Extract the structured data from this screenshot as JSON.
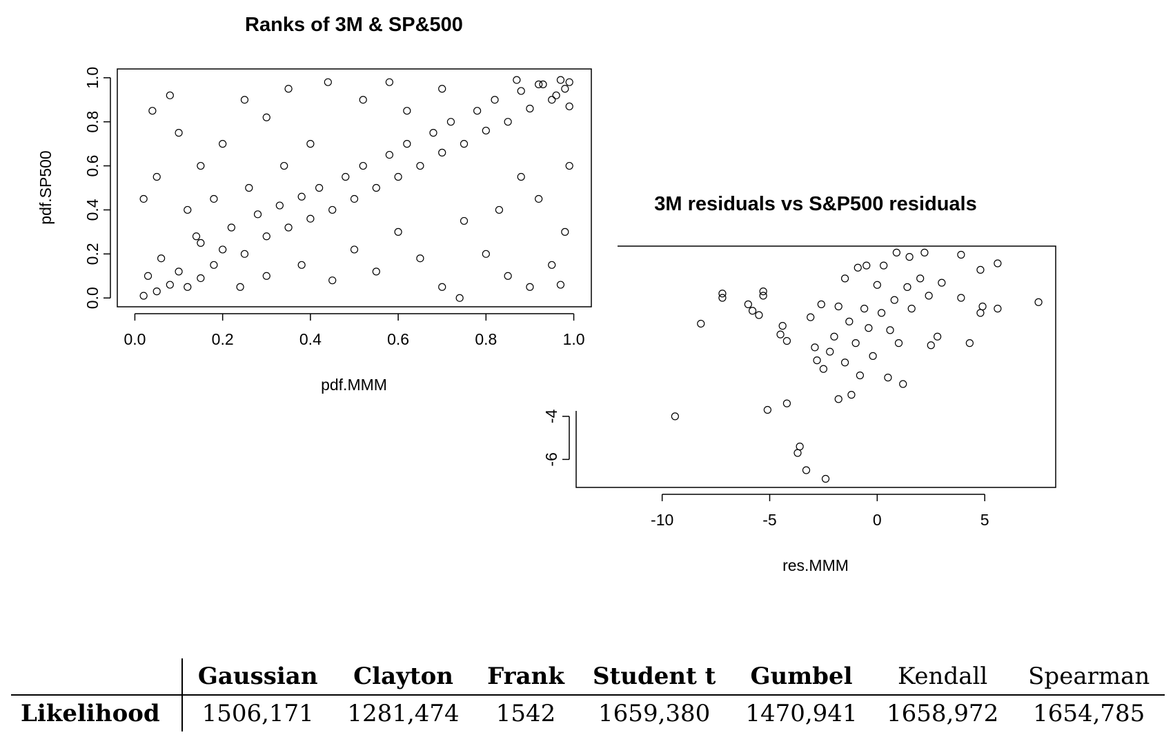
{
  "chart_data": [
    {
      "type": "scatter",
      "title": "Ranks of 3M & SP&500",
      "xlabel": "pdf.MMM",
      "ylabel": "pdf.SP500",
      "xlim": [
        -0.04,
        1.04
      ],
      "ylim": [
        -0.04,
        1.04
      ],
      "xticks": [
        "0.0",
        "0.2",
        "0.4",
        "0.6",
        "0.8",
        "1.0"
      ],
      "yticks": [
        "0.0",
        "0.2",
        "0.4",
        "0.6",
        "0.8",
        "1.0"
      ],
      "grid": false,
      "points": [
        [
          0.02,
          0.01
        ],
        [
          0.05,
          0.03
        ],
        [
          0.08,
          0.06
        ],
        [
          0.03,
          0.1
        ],
        [
          0.12,
          0.05
        ],
        [
          0.1,
          0.12
        ],
        [
          0.15,
          0.09
        ],
        [
          0.06,
          0.18
        ],
        [
          0.18,
          0.15
        ],
        [
          0.2,
          0.22
        ],
        [
          0.14,
          0.28
        ],
        [
          0.25,
          0.2
        ],
        [
          0.22,
          0.32
        ],
        [
          0.3,
          0.28
        ],
        [
          0.28,
          0.38
        ],
        [
          0.35,
          0.32
        ],
        [
          0.33,
          0.42
        ],
        [
          0.4,
          0.36
        ],
        [
          0.38,
          0.46
        ],
        [
          0.45,
          0.4
        ],
        [
          0.42,
          0.5
        ],
        [
          0.5,
          0.45
        ],
        [
          0.48,
          0.55
        ],
        [
          0.55,
          0.5
        ],
        [
          0.52,
          0.6
        ],
        [
          0.6,
          0.55
        ],
        [
          0.58,
          0.65
        ],
        [
          0.65,
          0.6
        ],
        [
          0.62,
          0.7
        ],
        [
          0.7,
          0.66
        ],
        [
          0.68,
          0.75
        ],
        [
          0.75,
          0.7
        ],
        [
          0.72,
          0.8
        ],
        [
          0.8,
          0.76
        ],
        [
          0.78,
          0.85
        ],
        [
          0.85,
          0.8
        ],
        [
          0.82,
          0.9
        ],
        [
          0.9,
          0.86
        ],
        [
          0.88,
          0.94
        ],
        [
          0.95,
          0.9
        ],
        [
          0.93,
          0.97
        ],
        [
          0.98,
          0.95
        ],
        [
          0.97,
          0.99
        ],
        [
          0.99,
          0.98
        ],
        [
          0.96,
          0.92
        ],
        [
          0.92,
          0.97
        ],
        [
          0.87,
          0.99
        ],
        [
          0.99,
          0.87
        ],
        [
          0.04,
          0.85
        ],
        [
          0.08,
          0.92
        ],
        [
          0.1,
          0.75
        ],
        [
          0.15,
          0.6
        ],
        [
          0.05,
          0.55
        ],
        [
          0.02,
          0.45
        ],
        [
          0.12,
          0.4
        ],
        [
          0.2,
          0.7
        ],
        [
          0.25,
          0.9
        ],
        [
          0.3,
          0.82
        ],
        [
          0.35,
          0.95
        ],
        [
          0.44,
          0.98
        ],
        [
          0.52,
          0.9
        ],
        [
          0.58,
          0.98
        ],
        [
          0.62,
          0.85
        ],
        [
          0.7,
          0.95
        ],
        [
          0.9,
          0.05
        ],
        [
          0.95,
          0.15
        ],
        [
          0.85,
          0.1
        ],
        [
          0.98,
          0.3
        ],
        [
          0.92,
          0.45
        ],
        [
          0.8,
          0.2
        ],
        [
          0.75,
          0.35
        ],
        [
          0.7,
          0.05
        ],
        [
          0.65,
          0.18
        ],
        [
          0.6,
          0.3
        ],
        [
          0.55,
          0.12
        ],
        [
          0.5,
          0.22
        ],
        [
          0.45,
          0.08
        ],
        [
          0.74,
          0.0
        ],
        [
          0.97,
          0.06
        ],
        [
          0.99,
          0.6
        ],
        [
          0.88,
          0.55
        ],
        [
          0.83,
          0.4
        ],
        [
          0.4,
          0.7
        ],
        [
          0.34,
          0.6
        ],
        [
          0.26,
          0.5
        ],
        [
          0.18,
          0.45
        ],
        [
          0.3,
          0.1
        ],
        [
          0.38,
          0.15
        ],
        [
          0.24,
          0.05
        ],
        [
          0.15,
          0.25
        ]
      ]
    },
    {
      "type": "scatter",
      "title": "3M residuals vs S&P500 residuals",
      "xlabel": "res.MMM",
      "ylabel": "",
      "xlim": [
        -14,
        8.3
      ],
      "ylim": [
        -7.3,
        3.9
      ],
      "xticks": [
        "-10",
        "-5",
        "0",
        "5"
      ],
      "yticks": [
        "-6",
        "-4"
      ],
      "grid": false,
      "points": [
        [
          -9.4,
          -4.0
        ],
        [
          -8.2,
          0.3
        ],
        [
          -7.2,
          1.7
        ],
        [
          -7.2,
          1.5
        ],
        [
          -5.3,
          1.8
        ],
        [
          -5.3,
          1.6
        ],
        [
          -6.0,
          1.2
        ],
        [
          -5.5,
          0.7
        ],
        [
          -5.8,
          0.9
        ],
        [
          -4.4,
          0.2
        ],
        [
          -4.5,
          -0.2
        ],
        [
          -4.2,
          -0.5
        ],
        [
          -3.6,
          -5.4
        ],
        [
          -3.7,
          -5.7
        ],
        [
          -3.3,
          -6.5
        ],
        [
          -2.4,
          -6.9
        ],
        [
          -5.1,
          -3.7
        ],
        [
          -4.2,
          -3.4
        ],
        [
          -1.2,
          -3.0
        ],
        [
          -1.8,
          -3.2
        ],
        [
          -2.8,
          -1.4
        ],
        [
          -2.5,
          -1.8
        ],
        [
          -2.9,
          -0.8
        ],
        [
          -3.1,
          0.6
        ],
        [
          -2.6,
          1.2
        ],
        [
          -1.5,
          2.4
        ],
        [
          -0.9,
          2.9
        ],
        [
          -0.5,
          3.0
        ],
        [
          0.3,
          3.0
        ],
        [
          0.9,
          3.6
        ],
        [
          1.5,
          3.4
        ],
        [
          2.2,
          3.6
        ],
        [
          3.9,
          3.5
        ],
        [
          4.8,
          2.8
        ],
        [
          5.6,
          3.1
        ],
        [
          7.5,
          1.3
        ],
        [
          5.6,
          1.0
        ],
        [
          4.9,
          1.1
        ],
        [
          4.8,
          0.8
        ],
        [
          4.3,
          -0.6
        ],
        [
          3.9,
          1.5
        ],
        [
          2.8,
          -0.3
        ],
        [
          2.5,
          -0.7
        ],
        [
          1.2,
          -2.5
        ],
        [
          0.5,
          -2.2
        ],
        [
          -0.8,
          -2.1
        ],
        [
          -1.5,
          -1.5
        ],
        [
          -2.2,
          -1.0
        ],
        [
          -1.0,
          -0.6
        ],
        [
          -0.4,
          0.1
        ],
        [
          0.2,
          0.8
        ],
        [
          0.8,
          1.4
        ],
        [
          1.4,
          2.0
        ],
        [
          2.0,
          2.4
        ],
        [
          -0.6,
          1.0
        ],
        [
          0.6,
          0.0
        ],
        [
          1.6,
          1.0
        ],
        [
          -1.3,
          0.4
        ],
        [
          -0.2,
          -1.2
        ],
        [
          1.0,
          -0.6
        ],
        [
          2.4,
          1.6
        ],
        [
          -2.0,
          -0.3
        ],
        [
          3.0,
          2.2
        ],
        [
          -1.8,
          1.1
        ],
        [
          0.0,
          2.1
        ]
      ]
    }
  ],
  "table": {
    "headers": [
      "Gaussian",
      "Clayton",
      "Frank",
      "Student t",
      "Gumbel",
      "Kendall",
      "Spearman"
    ],
    "row_label": "Likelihood",
    "values": [
      "1506,171",
      "1281,474",
      "1542",
      "1659,380",
      "1470,941",
      "1658,972",
      "1654,785"
    ]
  }
}
